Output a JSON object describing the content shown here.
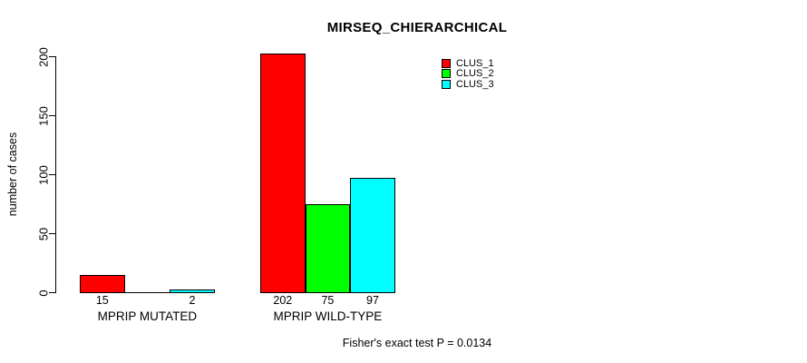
{
  "chart_data": {
    "type": "bar",
    "title": "MIRSEQ_CHIERARCHICAL",
    "ylabel": "number of cases",
    "xlabel": "",
    "ylim": [
      0,
      200
    ],
    "y_ticks": [
      0,
      50,
      100,
      150,
      200
    ],
    "categories": [
      "MPRIP MUTATED",
      "MPRIP WILD-TYPE"
    ],
    "series": [
      {
        "name": "CLUS_1",
        "color": "#ff0000",
        "values": [
          15,
          202
        ]
      },
      {
        "name": "CLUS_2",
        "color": "#00ff00",
        "values": [
          0,
          75
        ]
      },
      {
        "name": "CLUS_3",
        "color": "#00ffff",
        "values": [
          2,
          97
        ]
      }
    ],
    "value_labels": [
      [
        "15",
        "",
        "2"
      ],
      [
        "202",
        "75",
        "97"
      ]
    ],
    "annotation": "Fisher's exact test P = 0.0134",
    "legend_position": "top-right",
    "grid": false,
    "bar_border_color": "#000000",
    "axis_color": "#000000",
    "background": "#ffffff"
  }
}
